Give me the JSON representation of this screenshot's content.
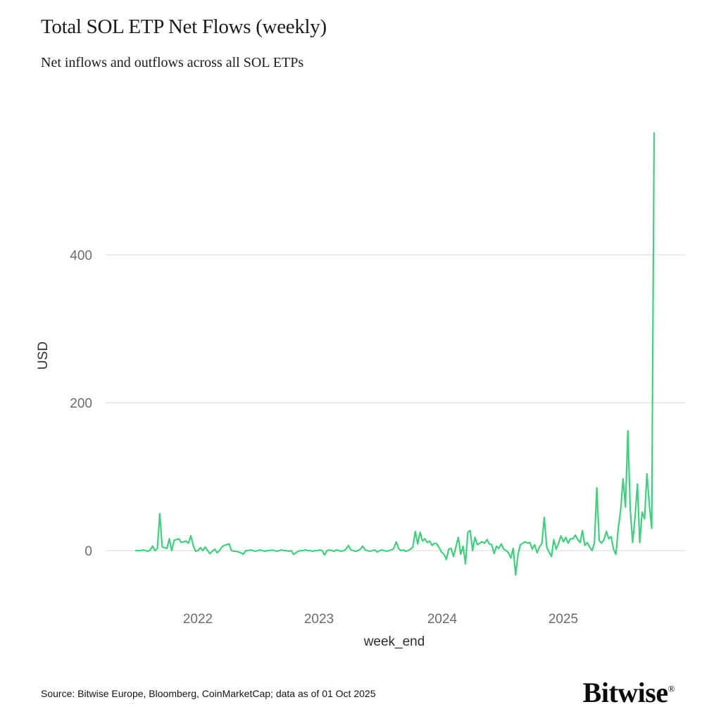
{
  "header": {
    "title": "Total SOL ETP Net Flows (weekly)",
    "subtitle": "Net inflows and outflows across all SOL ETPs"
  },
  "footer": {
    "source": "Source: Bitwise Europe, Bloomberg, CoinMarketCap; data as of 01 Oct 2025",
    "brand": "Bitwise",
    "brand_mark": "®"
  },
  "chart_data": {
    "type": "line",
    "title": "Total SOL ETP Net Flows (weekly)",
    "subtitle": "Net inflows and outflows across all SOL ETPs",
    "xlabel": "week_end",
    "ylabel": "USD",
    "x_start": "2021-07",
    "x_frequency": "weekly",
    "x_tick_labels": [
      "2022",
      "2023",
      "2024",
      "2025"
    ],
    "y_ticks": [
      0,
      200,
      400
    ],
    "ylim": [
      -45,
      585
    ],
    "grid": "horizontal",
    "legend": "none",
    "line_color": "#3ed17d",
    "grid_color": "#e1e1e1",
    "tick_color": "#6b6b6b",
    "series": [
      {
        "name": "Total SOL ETP net flows (USD)",
        "values": [
          0,
          0,
          0,
          1,
          0,
          -1,
          1,
          6,
          0,
          3,
          50,
          5,
          4,
          3,
          16,
          0,
          14,
          15,
          16,
          11,
          12,
          13,
          10,
          20,
          7,
          -1,
          0,
          4,
          0,
          5,
          0,
          -4,
          -1,
          2,
          -3,
          0,
          5,
          7,
          8,
          9,
          0,
          -1,
          -1,
          -2,
          -3,
          -5,
          0,
          0,
          1,
          0,
          -1,
          0,
          1,
          0,
          -1,
          0,
          0,
          1,
          0,
          -1,
          0,
          1,
          0,
          0,
          -1,
          0,
          -5,
          -3,
          -1,
          0,
          0,
          1,
          0,
          0,
          -1,
          0,
          0,
          1,
          0,
          -6,
          0,
          1,
          0,
          -1,
          1,
          0,
          -1,
          0,
          2,
          7,
          1,
          0,
          -1,
          0,
          2,
          6,
          1,
          0,
          -1,
          0,
          1,
          -2,
          0,
          1,
          0,
          -1,
          0,
          1,
          3,
          12,
          3,
          0,
          1,
          -1,
          0,
          2,
          5,
          26,
          9,
          25,
          13,
          16,
          11,
          13,
          7,
          10,
          9,
          4,
          -2,
          -5,
          -12,
          2,
          3,
          -8,
          5,
          18,
          -5,
          6,
          -18,
          25,
          27,
          0,
          18,
          8,
          10,
          12,
          10,
          15,
          9,
          8,
          -4,
          6,
          3,
          9,
          2,
          0,
          -3,
          -10,
          3,
          -33,
          -5,
          8,
          10,
          12,
          10,
          11,
          2,
          8,
          -3,
          5,
          10,
          45,
          5,
          -2,
          -8,
          15,
          2,
          10,
          20,
          12,
          18,
          10,
          16,
          16,
          21,
          15,
          11,
          27,
          7,
          11,
          5,
          0,
          10,
          85,
          14,
          10,
          15,
          26,
          16,
          19,
          2,
          -5,
          30,
          55,
          97,
          59,
          162,
          56,
          11,
          45,
          90,
          11,
          52,
          43,
          104,
          62,
          30,
          565
        ]
      }
    ]
  }
}
